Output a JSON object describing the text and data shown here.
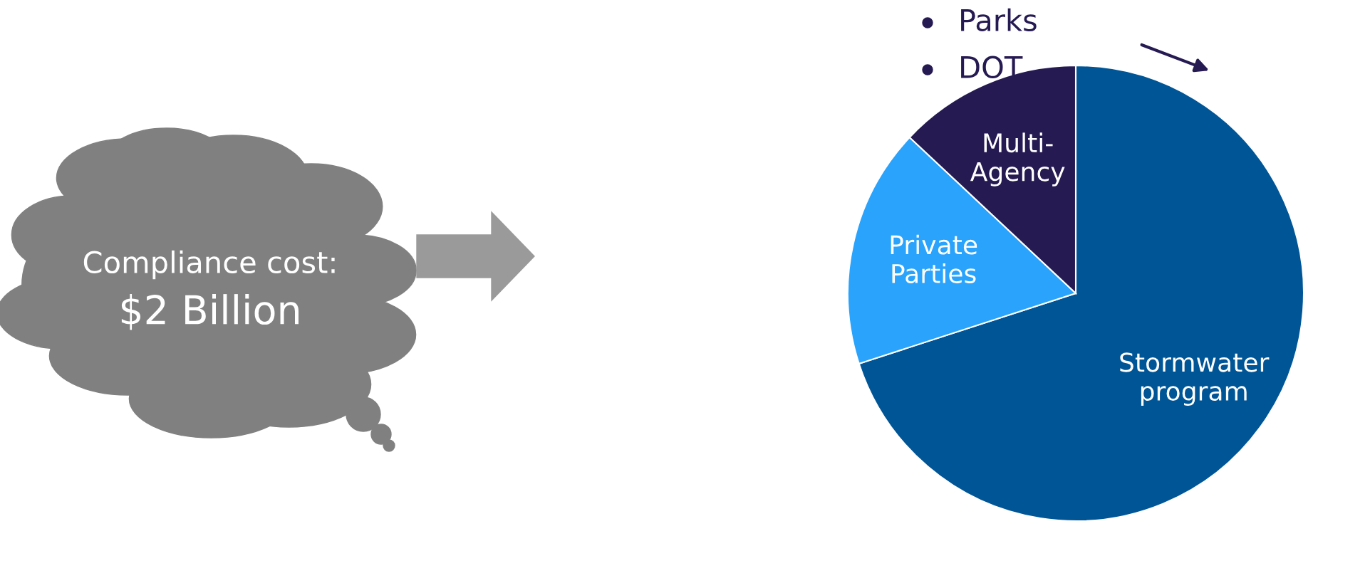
{
  "chart_data": {
    "type": "pie",
    "categories": [
      "Stormwater\nprogram",
      "Private\nParties",
      "Multi-\nAgency"
    ],
    "values": [
      70,
      17,
      13
    ],
    "colors": [
      "#005596",
      "#29a3fc",
      "#261a52"
    ],
    "annotations": [
      "Compliance cost:",
      "$2 Billion",
      "Parks",
      "DOT"
    ]
  }
}
